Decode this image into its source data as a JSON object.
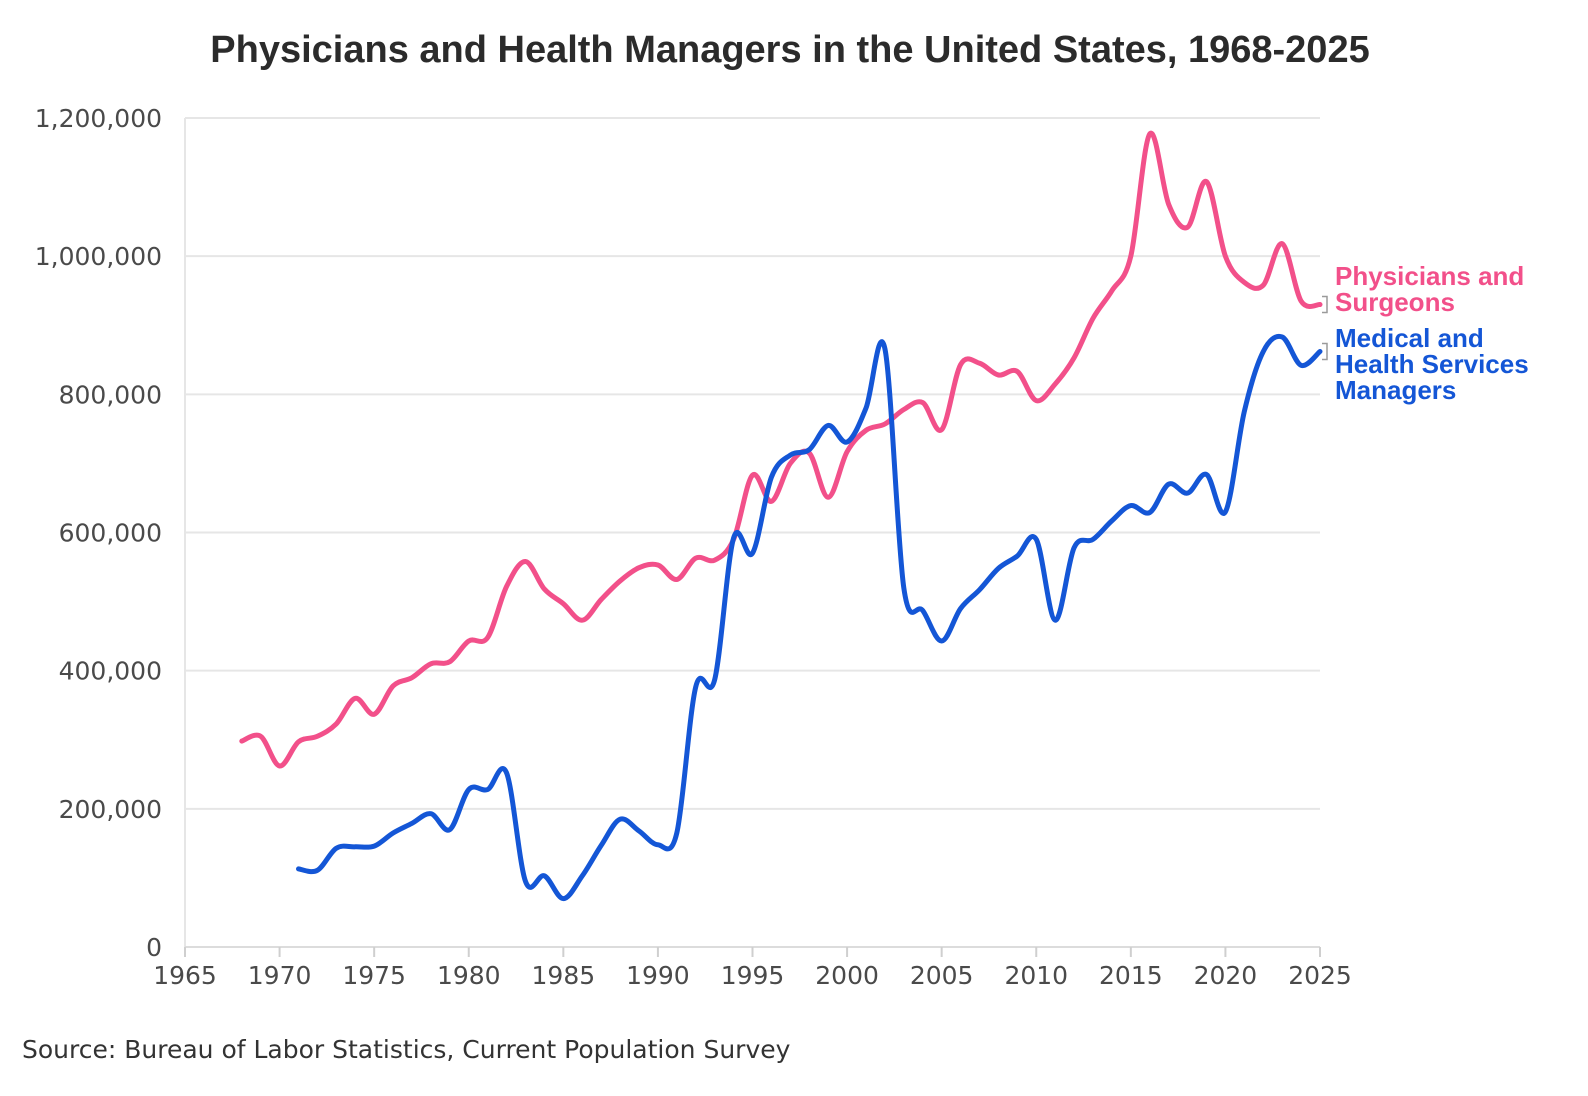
{
  "chart_data": {
    "type": "line",
    "title": "Physicians and Health Managers in the United States, 1968-2025",
    "source": "Source: Bureau of Labor Statistics, Current Population Survey",
    "xlabel": "",
    "ylabel": "",
    "xlim": [
      1965,
      2025
    ],
    "ylim": [
      0,
      1200000
    ],
    "x_ticks": [
      1965,
      1970,
      1975,
      1980,
      1985,
      1990,
      1995,
      2000,
      2005,
      2010,
      2015,
      2020,
      2025
    ],
    "x_tick_labels": [
      "1965",
      "1970",
      "1975",
      "1980",
      "1985",
      "1990",
      "1995",
      "2000",
      "2005",
      "2010",
      "2015",
      "2020",
      "2025"
    ],
    "y_ticks": [
      0,
      200000,
      400000,
      600000,
      800000,
      1000000,
      1200000
    ],
    "y_tick_labels": [
      "0",
      "200,000",
      "400,000",
      "600,000",
      "800,000",
      "1,000,000",
      "1,200,000"
    ],
    "grid": "horizontal",
    "legend": "direct labels at right end of lines",
    "series": [
      {
        "name": "Physicians and Surgeons",
        "label_lines": [
          "Physicians and",
          "Surgeons"
        ],
        "color": "#f2508a",
        "x": [
          1968,
          1969,
          1970,
          1971,
          1972,
          1973,
          1974,
          1975,
          1976,
          1977,
          1978,
          1979,
          1980,
          1981,
          1982,
          1983,
          1984,
          1985,
          1986,
          1987,
          1988,
          1989,
          1990,
          1991,
          1992,
          1993,
          1994,
          1995,
          1996,
          1997,
          1998,
          1999,
          2000,
          2001,
          2002,
          2003,
          2004,
          2005,
          2006,
          2007,
          2008,
          2009,
          2010,
          2011,
          2012,
          2013,
          2014,
          2015,
          2016,
          2017,
          2018,
          2019,
          2020,
          2021,
          2022,
          2023,
          2024,
          2025
        ],
        "values": [
          298000,
          305000,
          262000,
          297000,
          305000,
          323000,
          360000,
          337000,
          378000,
          390000,
          410000,
          413000,
          443000,
          448000,
          522000,
          558000,
          518000,
          497000,
          473000,
          503000,
          530000,
          549000,
          553000,
          532000,
          563000,
          560000,
          590000,
          683000,
          645000,
          700000,
          715000,
          651000,
          717000,
          748000,
          757000,
          778000,
          788000,
          749000,
          843000,
          845000,
          828000,
          833000,
          791000,
          815000,
          853000,
          910000,
          950000,
          1000000,
          1177000,
          1075000,
          1042000,
          1108000,
          1000000,
          962000,
          958000,
          1018000,
          935000,
          930000
        ]
      },
      {
        "name": "Medical and Health Services Managers",
        "label_lines": [
          "Medical and",
          "Health Services",
          "Managers"
        ],
        "color": "#1456d6",
        "x": [
          1971,
          1972,
          1973,
          1974,
          1975,
          1976,
          1977,
          1978,
          1979,
          1980,
          1981,
          1982,
          1983,
          1984,
          1985,
          1986,
          1987,
          1988,
          1989,
          1990,
          1991,
          1992,
          1993,
          1994,
          1995,
          1996,
          1997,
          1998,
          1999,
          2000,
          2001,
          2002,
          2003,
          2004,
          2005,
          2006,
          2007,
          2008,
          2009,
          2010,
          2011,
          2012,
          2013,
          2014,
          2015,
          2016,
          2017,
          2018,
          2019,
          2020,
          2021,
          2022,
          2023,
          2024,
          2025
        ],
        "values": [
          113000,
          111000,
          143000,
          145000,
          146000,
          165000,
          179000,
          193000,
          170000,
          228000,
          228000,
          252000,
          95000,
          103000,
          70000,
          103000,
          147000,
          185000,
          168000,
          148000,
          165000,
          377000,
          387000,
          592000,
          570000,
          680000,
          712000,
          720000,
          755000,
          731000,
          780000,
          866000,
          520000,
          487000,
          443000,
          490000,
          517000,
          548000,
          566000,
          590000,
          473000,
          578000,
          590000,
          617000,
          639000,
          629000,
          670000,
          657000,
          684000,
          630000,
          775000,
          862000,
          883000,
          842000,
          862000
        ]
      }
    ]
  }
}
